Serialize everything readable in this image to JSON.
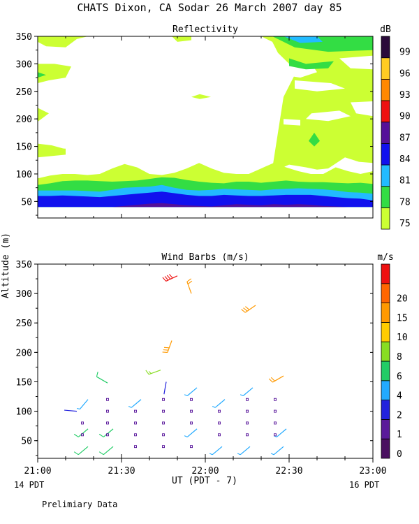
{
  "page": {
    "title": "CHATS Dixon, CA   Sodar  26 March 2007   day  85",
    "ylabel_shared": "Altitude (m)",
    "xlabel": "UT  (PDT - 7)",
    "left_time_note": "14 PDT",
    "right_time_note": "16 PDT",
    "footer": "Prelimiary Data"
  },
  "colors": {
    "c75": "#ccff33",
    "c78": "#33dd44",
    "c81": "#22bbff",
    "c84": "#1111ee",
    "c87": "#551199",
    "c90": "#ee1111",
    "c93": "#ff8800",
    "c96": "#ffcc22",
    "c99": "#2a0a3a",
    "c_white": "#ffffff",
    "ws_colors": [
      "#4a1060",
      "#5a1a9a",
      "#2222dd",
      "#22aaff",
      "#22cc66",
      "#88dd22",
      "#ffcc00",
      "#ff9900",
      "#ff6600",
      "#ee1111"
    ]
  },
  "chart_data": [
    {
      "id": "reflectivity",
      "type": "heatmap",
      "title": "Reflectivity",
      "ylim": [
        20,
        350
      ],
      "xlim": [
        0,
        120
      ],
      "yticks": [
        50,
        100,
        150,
        200,
        250,
        300,
        350
      ],
      "colorbar": {
        "unit": "dB",
        "levels": [
          "75",
          "78",
          "81",
          "84",
          "87",
          "90",
          "93",
          "96",
          "99"
        ]
      },
      "layers": [
        {
          "color": "c75",
          "top": [
            92,
            97,
            100,
            100,
            98,
            100,
            110,
            118,
            112,
            100,
            98,
            102,
            110,
            120,
            110,
            102,
            100,
            100,
            110,
            120,
            112,
            105,
            100,
            100,
            112,
            105,
            100,
            105
          ]
        },
        {
          "color": "c78",
          "top": [
            80,
            83,
            87,
            88,
            88,
            87,
            86,
            87,
            88,
            91,
            94,
            93,
            89,
            86,
            84,
            83,
            86,
            86,
            84,
            86,
            88,
            86,
            85,
            85,
            84,
            83,
            84,
            82
          ]
        },
        {
          "color": "c81",
          "top": [
            70,
            70,
            70,
            70,
            69,
            68,
            71,
            75,
            76,
            77,
            80,
            75,
            71,
            70,
            71,
            73,
            72,
            71,
            70,
            72,
            73,
            74,
            73,
            72,
            70,
            67,
            66,
            64
          ]
        },
        {
          "color": "c84",
          "top": [
            60,
            60,
            61,
            60,
            59,
            58,
            60,
            62,
            64,
            66,
            68,
            65,
            62,
            60,
            60,
            62,
            61,
            60,
            60,
            61,
            62,
            62,
            62,
            60,
            58,
            56,
            55,
            52
          ]
        },
        {
          "color": "c87",
          "top": [
            40,
            40,
            40,
            40,
            40,
            40,
            40,
            42,
            44,
            46,
            47,
            45,
            43,
            42,
            41,
            43,
            45,
            44,
            43,
            45,
            44,
            45,
            44,
            42,
            41,
            40,
            40,
            40
          ]
        }
      ]
    },
    {
      "id": "wind_barbs",
      "type": "scatter",
      "title": "Wind Barbs (m/s)",
      "xlim": [
        0,
        120
      ],
      "ylim": [
        20,
        350
      ],
      "xticks": [
        0,
        30,
        60,
        90,
        120
      ],
      "xticklabels": [
        "21:00",
        "21:30",
        "22:00",
        "22:30",
        "23:00"
      ],
      "yticks": [
        50,
        100,
        150,
        200,
        250,
        300,
        350
      ],
      "colorbar": {
        "unit": "m/s",
        "levels": [
          "0",
          "1",
          "2",
          "4",
          "6",
          "8",
          "10",
          "15",
          "20"
        ]
      },
      "barbs": [
        {
          "t": 18,
          "h": 40,
          "spd": 5,
          "dir": 230
        },
        {
          "t": 18,
          "h": 70,
          "spd": 5,
          "dir": 230
        },
        {
          "t": 18,
          "h": 120,
          "spd": 4,
          "dir": 220
        },
        {
          "t": 14,
          "h": 100,
          "spd": 2,
          "dir": 275
        },
        {
          "t": 25,
          "h": 148,
          "spd": 6,
          "dir": 300
        },
        {
          "t": 27,
          "h": 40,
          "spd": 5,
          "dir": 230
        },
        {
          "t": 27,
          "h": 70,
          "spd": 5,
          "dir": 230
        },
        {
          "t": 37,
          "h": 120,
          "spd": 4,
          "dir": 230
        },
        {
          "t": 44,
          "h": 170,
          "spd": 8,
          "dir": 250
        },
        {
          "t": 46,
          "h": 150,
          "spd": 2,
          "dir": 190
        },
        {
          "t": 48,
          "h": 220,
          "spd": 15,
          "dir": 200
        },
        {
          "t": 50,
          "h": 330,
          "spd": 22,
          "dir": 245
        },
        {
          "t": 55,
          "h": 300,
          "spd": 12,
          "dir": 340
        },
        {
          "t": 57,
          "h": 140,
          "spd": 4,
          "dir": 230
        },
        {
          "t": 57,
          "h": 70,
          "spd": 4,
          "dir": 230
        },
        {
          "t": 66,
          "h": 40,
          "spd": 4,
          "dir": 230
        },
        {
          "t": 67,
          "h": 120,
          "spd": 4,
          "dir": 230
        },
        {
          "t": 76,
          "h": 40,
          "spd": 4,
          "dir": 230
        },
        {
          "t": 77,
          "h": 140,
          "spd": 4,
          "dir": 230
        },
        {
          "t": 78,
          "h": 280,
          "spd": 15,
          "dir": 235
        },
        {
          "t": 88,
          "h": 40,
          "spd": 4,
          "dir": 230
        },
        {
          "t": 89,
          "h": 70,
          "spd": 4,
          "dir": 230
        },
        {
          "t": 88,
          "h": 160,
          "spd": 12,
          "dir": 240
        }
      ],
      "calm_points": [
        {
          "t": 25,
          "h": 120
        },
        {
          "t": 25,
          "h": 100
        },
        {
          "t": 25,
          "h": 80
        },
        {
          "t": 25,
          "h": 60
        },
        {
          "t": 16,
          "h": 80
        },
        {
          "t": 16,
          "h": 60
        },
        {
          "t": 35,
          "h": 100
        },
        {
          "t": 35,
          "h": 80
        },
        {
          "t": 35,
          "h": 60
        },
        {
          "t": 35,
          "h": 40
        },
        {
          "t": 45,
          "h": 120
        },
        {
          "t": 45,
          "h": 100
        },
        {
          "t": 45,
          "h": 80
        },
        {
          "t": 45,
          "h": 60
        },
        {
          "t": 45,
          "h": 40
        },
        {
          "t": 55,
          "h": 120
        },
        {
          "t": 55,
          "h": 100
        },
        {
          "t": 55,
          "h": 80
        },
        {
          "t": 55,
          "h": 40
        },
        {
          "t": 65,
          "h": 100
        },
        {
          "t": 65,
          "h": 80
        },
        {
          "t": 65,
          "h": 60
        },
        {
          "t": 75,
          "h": 120
        },
        {
          "t": 75,
          "h": 100
        },
        {
          "t": 75,
          "h": 80
        },
        {
          "t": 75,
          "h": 60
        },
        {
          "t": 85,
          "h": 120
        },
        {
          "t": 85,
          "h": 100
        },
        {
          "t": 85,
          "h": 80
        },
        {
          "t": 85,
          "h": 60
        }
      ]
    }
  ]
}
